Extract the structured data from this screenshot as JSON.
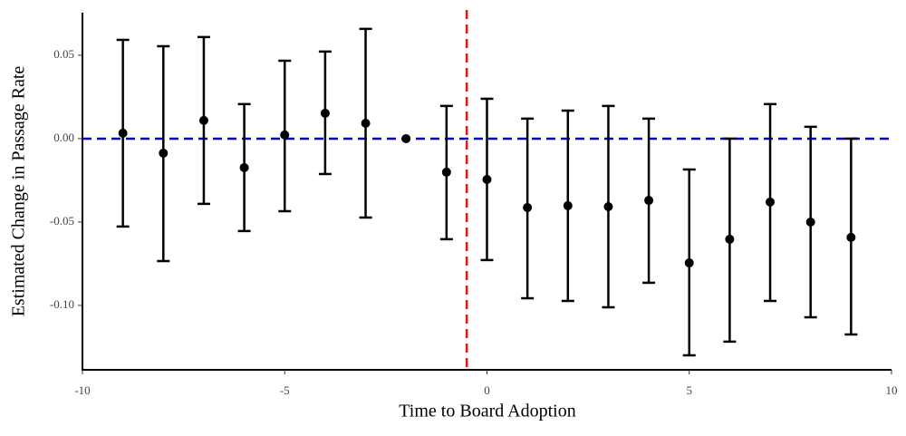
{
  "chart_data": {
    "type": "errorbar",
    "x_label": "Time to Board Adoption",
    "y_label": "Estimated Change in Passage Rate",
    "x": [
      -9,
      -8,
      -7,
      -6,
      -5,
      -4,
      -3,
      -2,
      -1,
      0,
      1,
      2,
      3,
      4,
      5,
      6,
      7,
      8,
      9
    ],
    "values": [
      0.0033,
      -0.0087,
      0.0109,
      -0.0174,
      0.0022,
      0.0152,
      0.0092,
      0,
      -0.0201,
      -0.0245,
      -0.0413,
      -0.0402,
      -0.0408,
      -0.037,
      -0.0745,
      -0.0603,
      -0.038,
      -0.05,
      -0.0592
    ],
    "lower": [
      -0.0527,
      -0.0734,
      -0.0391,
      -0.0554,
      -0.0435,
      -0.0212,
      -0.0473,
      null,
      -0.0603,
      -0.0728,
      -0.0957,
      -0.0973,
      -0.1011,
      -0.0864,
      -0.1299,
      -0.1217,
      -0.0973,
      -0.1071,
      -0.1174
    ],
    "upper": [
      0.0592,
      0.0554,
      0.0609,
      0.0207,
      0.0467,
      0.0522,
      0.0658,
      null,
      0.0196,
      0.0239,
      0.012,
      0.0168,
      0.0196,
      0.012,
      -0.0185,
      0,
      0.0207,
      0.0071,
      0
    ],
    "color": "#000000",
    "hline": {
      "value": 0,
      "color": "#0000cc"
    },
    "vline": {
      "value": -0.5,
      "color": "#e31a1c"
    },
    "xlim": [
      -10,
      10
    ],
    "xticks": [
      -10,
      -5,
      0,
      5,
      10
    ],
    "ylim": [
      -0.1386,
      0.0755
    ],
    "yticks": [
      {
        "value": -0.1,
        "label": "-0.10"
      },
      -0.05,
      {
        "value": 0,
        "label": "0.00"
      },
      0.05
    ],
    "grid": false
  }
}
